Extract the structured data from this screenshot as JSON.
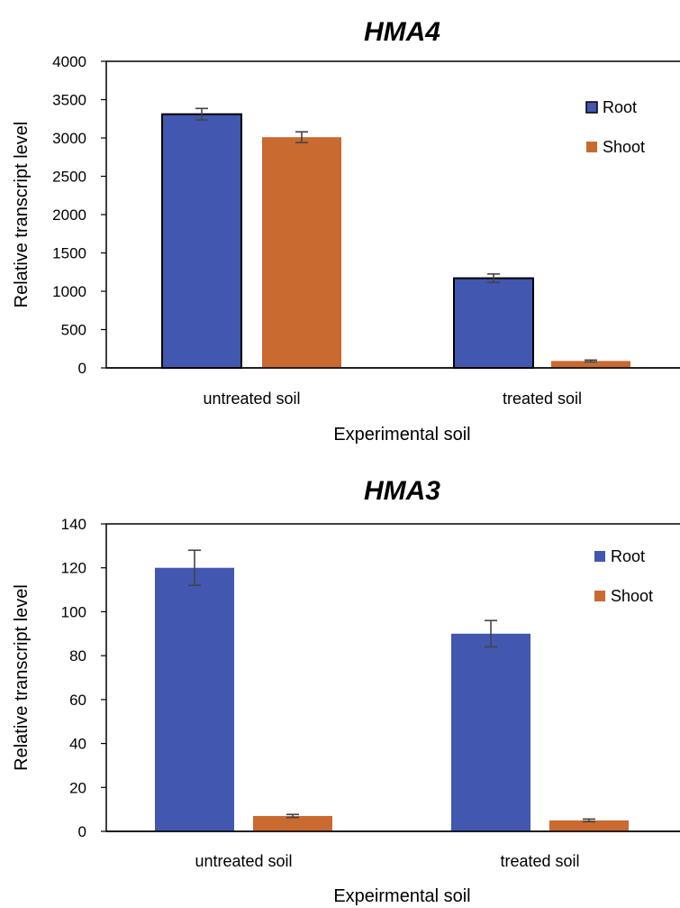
{
  "chart_data": [
    {
      "type": "bar",
      "title": "HMA4",
      "xlabel": "Experimental soil",
      "ylabel": "Relative transcript level",
      "ylim": [
        0,
        4000
      ],
      "yticks": [
        0,
        500,
        1000,
        1500,
        2000,
        2500,
        3000,
        3500,
        4000
      ],
      "categories": [
        "untreated soil",
        "treated soil"
      ],
      "series": [
        {
          "name": "Root",
          "color": "#4157B0",
          "values": [
            3310,
            1170
          ],
          "errors": [
            75,
            55
          ],
          "outlined": true
        },
        {
          "name": "Shoot",
          "color": "#C96A30",
          "values": [
            3010,
            90
          ],
          "errors": [
            70,
            12
          ],
          "outlined": false
        }
      ],
      "legend": "top-right",
      "grid": false
    },
    {
      "type": "bar",
      "title": "HMA3",
      "xlabel": "Expeirmental soil",
      "ylabel": "Relative transcript level",
      "ylim": [
        0,
        140
      ],
      "yticks": [
        0,
        20,
        40,
        60,
        80,
        100,
        120,
        140
      ],
      "categories": [
        "untreated soil",
        "treated soil"
      ],
      "series": [
        {
          "name": "Root",
          "color": "#4157B0",
          "values": [
            120,
            90
          ],
          "errors": [
            8,
            6
          ],
          "outlined": false
        },
        {
          "name": "Shoot",
          "color": "#C96A30",
          "values": [
            7,
            5
          ],
          "errors": [
            0.7,
            0.6
          ],
          "outlined": false
        }
      ],
      "legend": "top-right",
      "grid": false
    }
  ]
}
